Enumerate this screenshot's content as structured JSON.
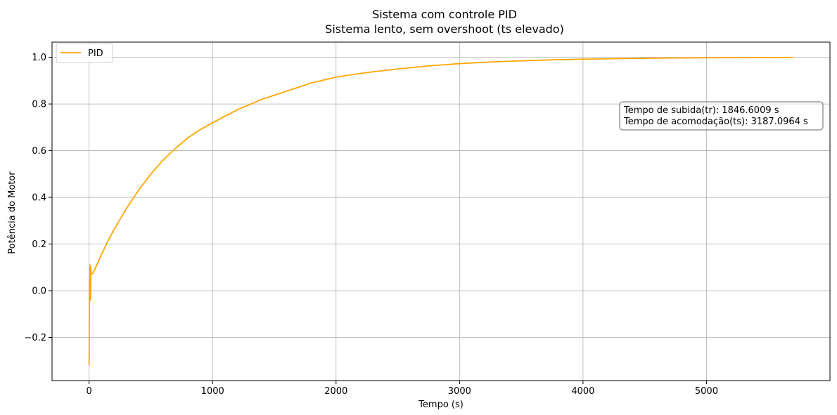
{
  "chart_data": {
    "type": "line",
    "title": "Sistema com controle PID",
    "subtitle": "Sistema lento, sem overshoot (ts elevado)",
    "xlabel": "Tempo (s)",
    "ylabel": "Potência do Motor",
    "xlim": [
      -300,
      6000
    ],
    "ylim": [
      -0.385,
      1.065
    ],
    "xticks": [
      0,
      1000,
      2000,
      3000,
      4000,
      5000
    ],
    "xtick_labels": [
      "0",
      "1000",
      "2000",
      "3000",
      "4000",
      "5000"
    ],
    "yticks": [
      -0.2,
      0.0,
      0.2,
      0.4,
      0.6,
      0.8,
      1.0
    ],
    "ytick_labels": [
      "−0.2",
      "0.0",
      "0.2",
      "0.4",
      "0.6",
      "0.8",
      "1.0"
    ],
    "grid": true,
    "legend_position": "top-left",
    "series": [
      {
        "name": "PID",
        "color": "#ffa500",
        "x": [
          0,
          1,
          2,
          3,
          4,
          5,
          6,
          8,
          10,
          12,
          14,
          16,
          20,
          30,
          50,
          100,
          150,
          200,
          300,
          400,
          500,
          600,
          700,
          800,
          900,
          1000,
          1200,
          1400,
          1600,
          1800,
          2000,
          2250,
          2500,
          2750,
          3000,
          3250,
          3500,
          3750,
          4000,
          4250,
          4500,
          4750,
          5000,
          5250,
          5500,
          5700
        ],
        "y": [
          -0.32,
          -0.25,
          0.04,
          -0.05,
          0.02,
          -0.04,
          0.01,
          0.11,
          0.05,
          -0.04,
          0.1,
          0.07,
          0.07,
          0.075,
          0.095,
          0.155,
          0.21,
          0.26,
          0.35,
          0.43,
          0.5,
          0.56,
          0.61,
          0.655,
          0.69,
          0.72,
          0.775,
          0.82,
          0.855,
          0.89,
          0.915,
          0.935,
          0.95,
          0.963,
          0.973,
          0.98,
          0.985,
          0.989,
          0.992,
          0.994,
          0.996,
          0.997,
          0.998,
          0.9985,
          0.999,
          0.9995
        ]
      }
    ],
    "annotation": {
      "lines": [
        "Tempo de subida(tr): 1846.6009 s",
        "Tempo de acomodação(ts): 3187.0964 s"
      ]
    }
  }
}
